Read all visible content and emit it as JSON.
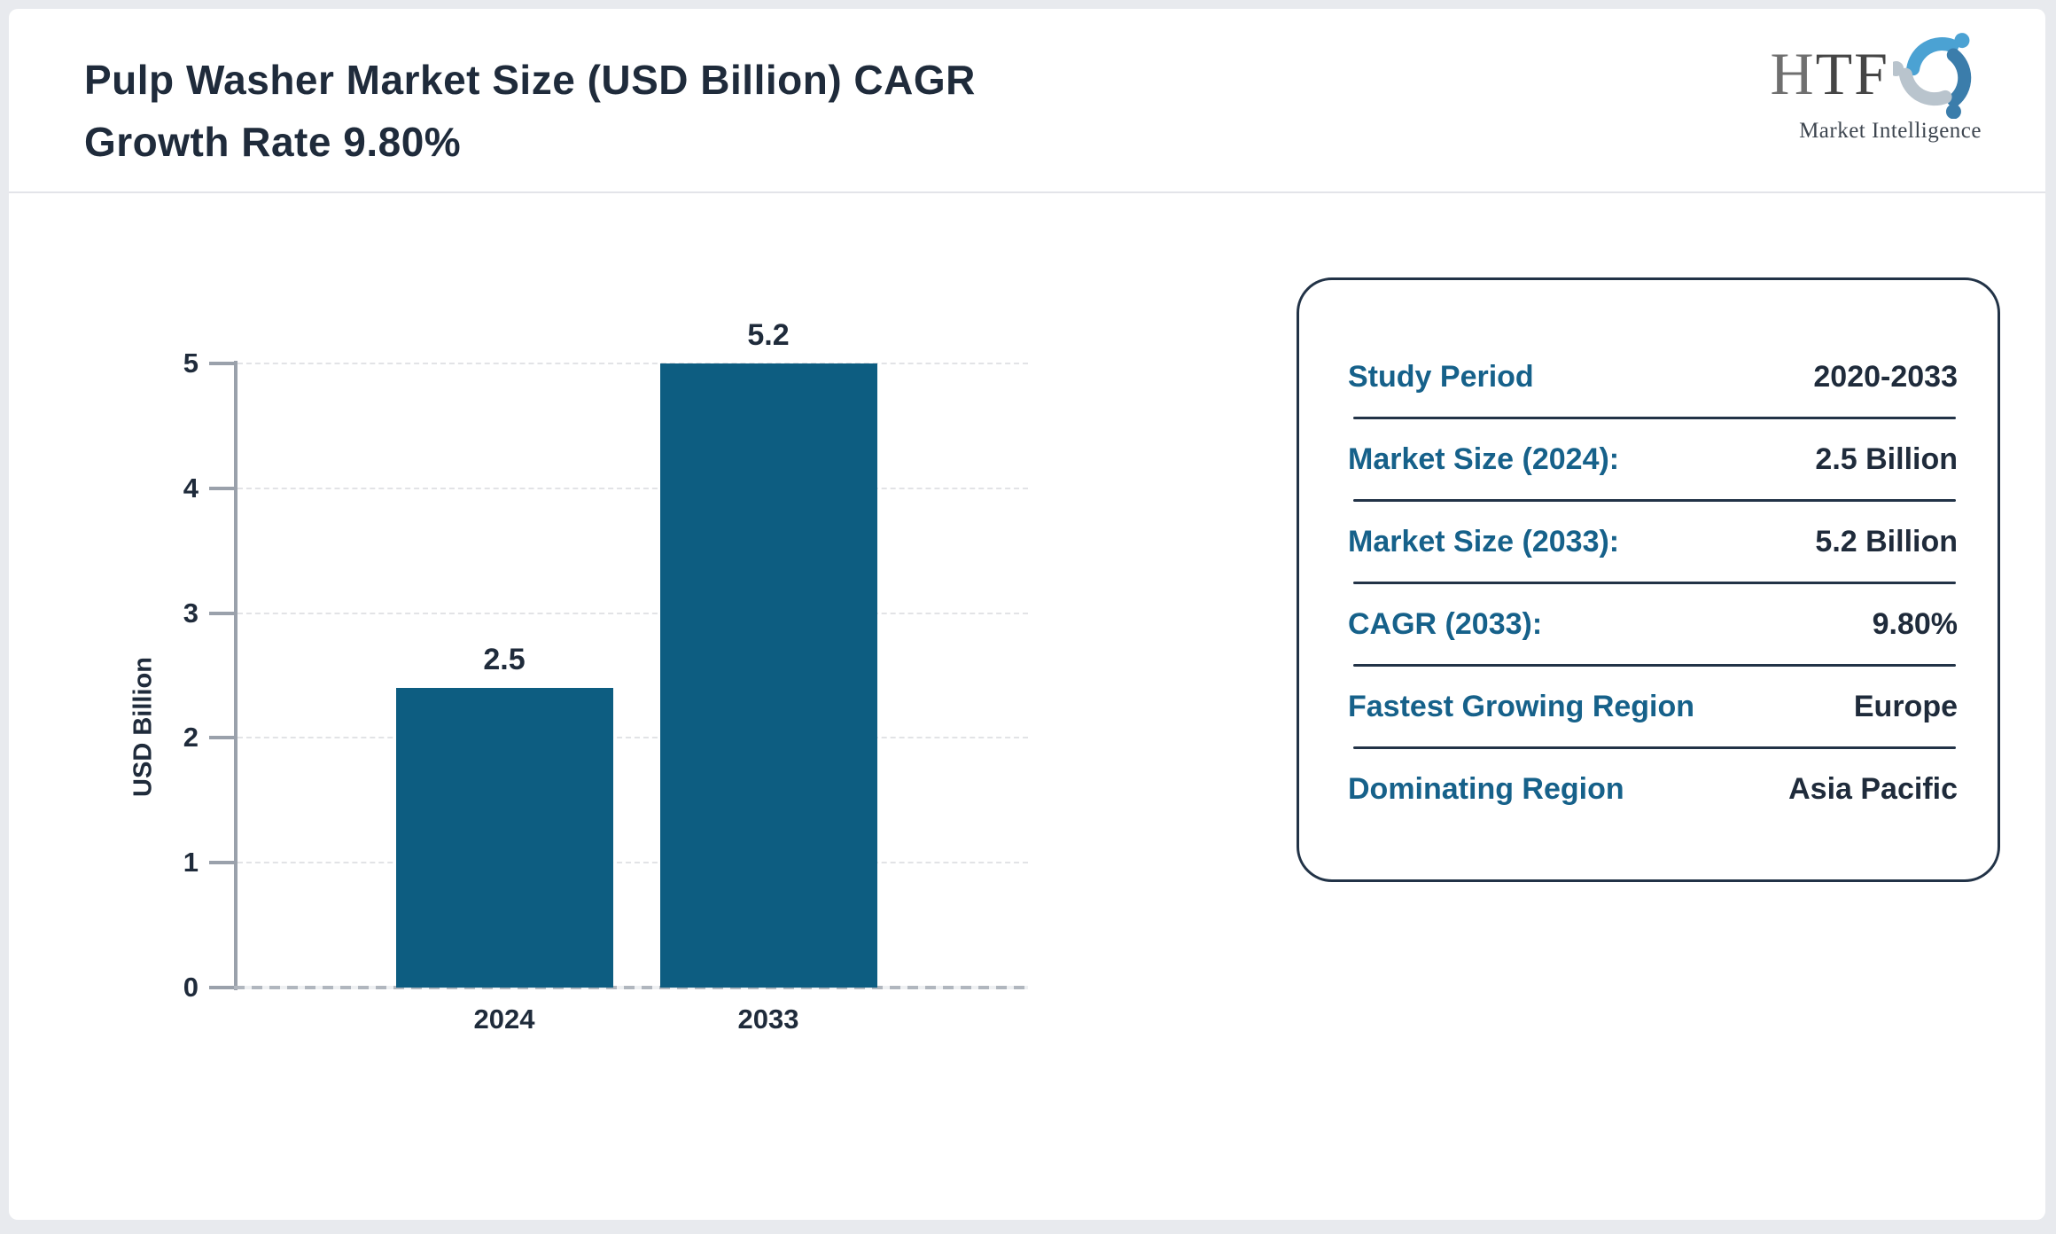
{
  "header": {
    "title_line1": "Pulp Washer Market Size (USD Billion) CAGR",
    "title_line2": "Growth Rate 9.80%"
  },
  "logo": {
    "text": "HTF",
    "subtext": "Market Intelligence"
  },
  "chart_data": {
    "type": "bar",
    "categories": [
      "2024",
      "2033"
    ],
    "values": [
      2.5,
      5.2
    ],
    "value_labels": [
      "2.5",
      "5.2"
    ],
    "title": "Pulp Washer Market Size (USD Billion) CAGR Growth Rate 9.80%",
    "xlabel": "",
    "ylabel": "USD Billion",
    "ylim": [
      0,
      5
    ],
    "yticks": [
      0,
      1,
      2,
      3,
      4,
      5
    ],
    "grid": "horizontal-dashed",
    "legend": "none",
    "bar_color": "#0d5d81"
  },
  "panel": {
    "rows": [
      {
        "label": "Study Period",
        "value": "2020-2033"
      },
      {
        "label": "Market Size (2024):",
        "value": "2.5 Billion"
      },
      {
        "label": "Market Size (2033):",
        "value": "5.2 Billion"
      },
      {
        "label": "CAGR (2033):",
        "value": "9.80%"
      },
      {
        "label": "Fastest Growing Region",
        "value": "Europe"
      },
      {
        "label": "Dominating Region",
        "value": "Asia Pacific"
      }
    ]
  },
  "colors": {
    "accent_teal": "#16618a",
    "navy": "#1f2b3b",
    "bar": "#0d5d81",
    "axis_gray": "#9aa1ab"
  }
}
